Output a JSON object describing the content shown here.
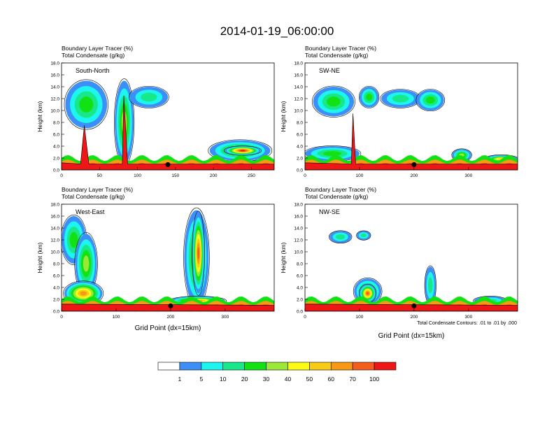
{
  "title": "2014-01-19_06:00:00",
  "panel_header_line1": "Boundary Layer Tracer   (%)",
  "panel_header_line2": "Total Condensate   (g/kg)",
  "ylabel": "Height (km)",
  "xlabel": "Grid Point (dx=15km)",
  "contour_note": "Total Condensate Contours: .01 to .01 by .000",
  "colorbar": {
    "colors": [
      "#ffffff",
      "#3b8ff7",
      "#1df5f0",
      "#18e889",
      "#12e214",
      "#9be837",
      "#fbfb14",
      "#f8cb16",
      "#f89915",
      "#f45d1c",
      "#ee1616"
    ],
    "labels": [
      "1",
      "5",
      "10",
      "20",
      "30",
      "40",
      "50",
      "60",
      "70",
      "100"
    ]
  },
  "chart_data": [
    {
      "type": "heatmap",
      "label": "South-North",
      "xlim": [
        0,
        280
      ],
      "ylim": [
        0,
        18
      ],
      "xticks": [
        "0",
        "50",
        "100",
        "150",
        "200",
        "250"
      ],
      "yticks": [
        "0.0",
        "2.0",
        "4.0",
        "6.0",
        "8.0",
        "10.0",
        "12.0",
        "14.0",
        "16.0",
        "18.0"
      ],
      "marker_x": 140,
      "surface": [
        [
          0,
          1.2
        ],
        [
          25,
          1.0
        ],
        [
          30,
          7.5
        ],
        [
          36,
          1.0
        ],
        [
          80,
          1.0
        ],
        [
          82,
          12.5
        ],
        [
          87,
          1.0
        ],
        [
          280,
          1.0
        ]
      ],
      "blobs": [
        {
          "x": [
            5,
            60
          ],
          "y": [
            7,
            15
          ],
          "v": 20
        },
        {
          "x": [
            70,
            95
          ],
          "y": [
            1,
            15
          ],
          "v": 30
        },
        {
          "x": [
            90,
            140
          ],
          "y": [
            10.5,
            14
          ],
          "v": 10
        },
        {
          "x": [
            195,
            275
          ],
          "y": [
            1.5,
            5
          ],
          "v": 30
        },
        {
          "x": [
            215,
            262
          ],
          "y": [
            2.5,
            4
          ],
          "v": 100
        }
      ]
    },
    {
      "type": "heatmap",
      "label": "SW-NE",
      "xlim": [
        0,
        390
      ],
      "ylim": [
        0,
        18
      ],
      "xticks": [
        "0",
        "100",
        "200",
        "300"
      ],
      "yticks": [
        "0.0",
        "2.0",
        "4.0",
        "6.0",
        "8.0",
        "10.0",
        "12.0",
        "14.0",
        "16.0",
        "18.0"
      ],
      "marker_x": 200,
      "surface": [
        [
          0,
          1.2
        ],
        [
          85,
          1.0
        ],
        [
          88,
          9.5
        ],
        [
          93,
          1.0
        ],
        [
          390,
          1.0
        ]
      ],
      "blobs": [
        {
          "x": [
            0,
            100
          ],
          "y": [
            1.5,
            4
          ],
          "v": 20
        },
        {
          "x": [
            15,
            90
          ],
          "y": [
            9,
            14
          ],
          "v": 20
        },
        {
          "x": [
            100,
            135
          ],
          "y": [
            10.5,
            14
          ],
          "v": 20
        },
        {
          "x": [
            140,
            210
          ],
          "y": [
            10.5,
            13.5
          ],
          "v": 10
        },
        {
          "x": [
            205,
            255
          ],
          "y": [
            10,
            13.5
          ],
          "v": 20
        },
        {
          "x": [
            270,
            305
          ],
          "y": [
            1.5,
            3.5
          ],
          "v": 30
        },
        {
          "x": [
            330,
            390
          ],
          "y": [
            1.2,
            2.5
          ],
          "v": 50
        }
      ]
    },
    {
      "type": "heatmap",
      "label": "West-East",
      "xlim": [
        0,
        390
      ],
      "ylim": [
        0,
        18
      ],
      "xticks": [
        "0",
        "100",
        "200",
        "300"
      ],
      "yticks": [
        "0.0",
        "2.0",
        "4.0",
        "6.0",
        "8.0",
        "10.0",
        "12.0",
        "14.0",
        "16.0",
        "18.0"
      ],
      "marker_x": 200,
      "surface": [
        [
          0,
          1.2
        ],
        [
          390,
          1.0
        ]
      ],
      "blobs": [
        {
          "x": [
            0,
            45
          ],
          "y": [
            8,
            16
          ],
          "v": 20
        },
        {
          "x": [
            25,
            65
          ],
          "y": [
            3,
            13
          ],
          "v": 30
        },
        {
          "x": [
            5,
            75
          ],
          "y": [
            1,
            5
          ],
          "v": 60
        },
        {
          "x": [
            225,
            270
          ],
          "y": [
            1,
            17
          ],
          "v": 30
        },
        {
          "x": [
            240,
            262
          ],
          "y": [
            3,
            16.5
          ],
          "v": 70
        },
        {
          "x": [
            200,
            300
          ],
          "y": [
            1,
            2.5
          ],
          "v": 60
        }
      ]
    },
    {
      "type": "heatmap",
      "label": "NW-SE",
      "xlim": [
        0,
        390
      ],
      "ylim": [
        0,
        18
      ],
      "xticks": [
        "0",
        "100",
        "200",
        "300"
      ],
      "yticks": [
        "0.0",
        "2.0",
        "4.0",
        "6.0",
        "8.0",
        "10.0",
        "12.0",
        "14.0",
        "16.0",
        "18.0"
      ],
      "marker_x": 200,
      "surface": [
        [
          0,
          1.2
        ],
        [
          390,
          1.0
        ]
      ],
      "blobs": [
        {
          "x": [
            45,
            85
          ],
          "y": [
            11.5,
            13.5
          ],
          "v": 10
        },
        {
          "x": [
            95,
            120
          ],
          "y": [
            12,
            13.5
          ],
          "v": 10
        },
        {
          "x": [
            90,
            140
          ],
          "y": [
            1.2,
            5.5
          ],
          "v": 30
        },
        {
          "x": [
            100,
            130
          ],
          "y": [
            1.5,
            4.5
          ],
          "v": 70
        },
        {
          "x": [
            220,
            240
          ],
          "y": [
            1.2,
            7.5
          ],
          "v": 10
        },
        {
          "x": [
            310,
            370
          ],
          "y": [
            1,
            2.5
          ],
          "v": 10
        }
      ]
    }
  ]
}
